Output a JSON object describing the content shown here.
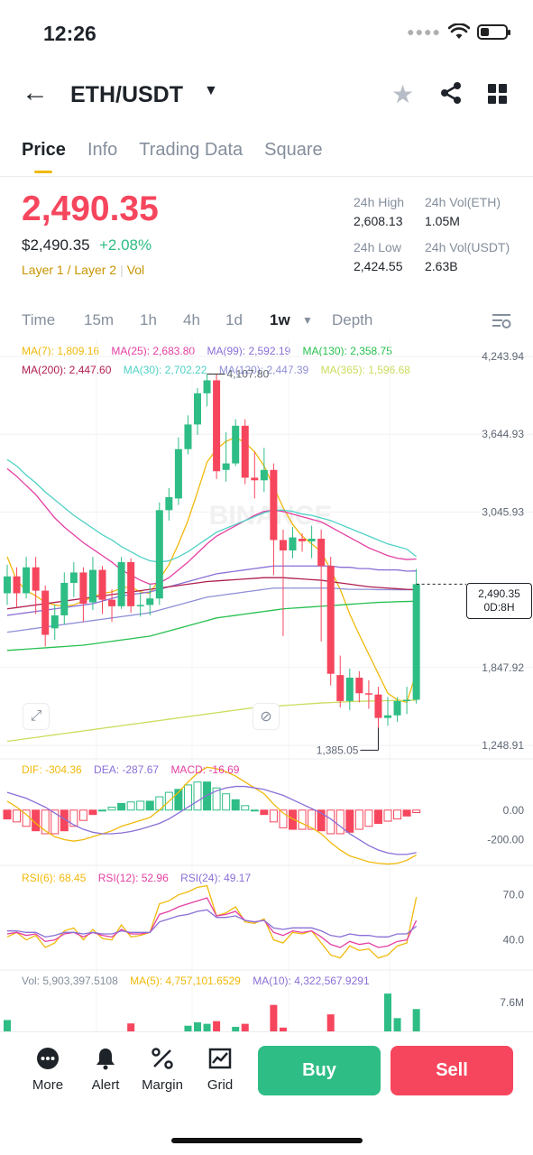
{
  "status": {
    "time": "12:26"
  },
  "header": {
    "pair": "ETH/USDT"
  },
  "tabs": [
    "Price",
    "Info",
    "Trading Data",
    "Square"
  ],
  "ticker": {
    "last": "2,490.35",
    "usd": "$2,490.35",
    "change": "+2.08%",
    "tag1": "Layer 1 / Layer 2",
    "tag2": "Vol",
    "high_label": "24h High",
    "high": "2,608.13",
    "low_label": "24h Low",
    "low": "2,424.55",
    "vol_eth_label": "24h Vol(ETH)",
    "vol_eth": "1.05M",
    "vol_usdt_label": "24h Vol(USDT)",
    "vol_usdt": "2.63B"
  },
  "timeframes": [
    "Time",
    "15m",
    "1h",
    "4h",
    "1d",
    "1w",
    "Depth"
  ],
  "ma_legend": [
    {
      "label": "MA(7): 1,809.16",
      "color": "#f0b90b"
    },
    {
      "label": "MA(25): 2,683.80",
      "color": "#e440a3"
    },
    {
      "label": "MA(99): 2,592.19",
      "color": "#8a6fd6"
    },
    {
      "label": "MA(130): 2,358.75",
      "color": "#26c04f"
    },
    {
      "label": "MA(200): 2,447.60",
      "color": "#b01e50"
    },
    {
      "label": "MA(30): 2,702.22",
      "color": "#4fd1c5"
    },
    {
      "label": "MA(120): 2,447.39",
      "color": "#8f8fd8"
    },
    {
      "label": "MA(365): 1,596.68",
      "color": "#cddc5e"
    }
  ],
  "chart_data": {
    "type": "candlestick",
    "interval": "1w",
    "y_ticks": [
      "4,243.94",
      "3,644.93",
      "3,045.93",
      "1,847.92",
      "1,248.91"
    ],
    "y_tick_values": [
      4243.94,
      3644.93,
      3045.93,
      1847.92,
      1248.91
    ],
    "high_marker": "4,107.80",
    "low_marker": "1,385.05",
    "last_price": "2,490.35",
    "countdown": "0D:8H",
    "candles": [
      [
        2420,
        2550,
        2330,
        2640
      ],
      [
        2550,
        2420,
        2310,
        2620
      ],
      [
        2420,
        2620,
        2380,
        2700
      ],
      [
        2620,
        2440,
        2260,
        2700
      ],
      [
        2440,
        2100,
        2010,
        2480
      ],
      [
        2150,
        2250,
        2060,
        2330
      ],
      [
        2250,
        2500,
        2180,
        2580
      ],
      [
        2500,
        2580,
        2390,
        2660
      ],
      [
        2580,
        2340,
        2200,
        2620
      ],
      [
        2350,
        2600,
        2290,
        2700
      ],
      [
        2600,
        2370,
        2260,
        2630
      ],
      [
        2370,
        2320,
        2200,
        2450
      ],
      [
        2320,
        2660,
        2300,
        2700
      ],
      [
        2660,
        2320,
        2270,
        2690
      ],
      [
        2320,
        2330,
        2240,
        2420
      ],
      [
        2330,
        2380,
        2250,
        2490
      ],
      [
        2380,
        3060,
        2330,
        3120
      ],
      [
        3060,
        3160,
        2980,
        3230
      ],
      [
        3150,
        3530,
        3100,
        3620
      ],
      [
        3530,
        3720,
        3490,
        3790
      ],
      [
        3720,
        3960,
        3640,
        4000
      ],
      [
        3960,
        4060,
        3860,
        4107.8
      ],
      [
        4060,
        3360,
        3300,
        4107.8
      ],
      [
        3370,
        3420,
        3280,
        3660
      ],
      [
        3420,
        3710,
        3400,
        3760
      ],
      [
        3710,
        3310,
        3260,
        3760
      ],
      [
        3310,
        3290,
        3150,
        3510
      ],
      [
        3290,
        3370,
        3200,
        3540
      ],
      [
        3370,
        2830,
        2560,
        3420
      ],
      [
        2830,
        2750,
        2090,
        2910
      ],
      [
        2750,
        2850,
        2690,
        2930
      ],
      [
        2840,
        2820,
        2740,
        2880
      ],
      [
        2820,
        2840,
        2690,
        2940
      ],
      [
        2840,
        2630,
        2050,
        2910
      ],
      [
        2630,
        1800,
        1710,
        2700
      ],
      [
        1790,
        1590,
        1540,
        1940
      ],
      [
        1590,
        1770,
        1520,
        1840
      ],
      [
        1770,
        1650,
        1580,
        1820
      ],
      [
        1650,
        1640,
        1530,
        1750
      ],
      [
        1640,
        1460,
        1385.05,
        1700
      ],
      [
        1460,
        1480,
        1400,
        1620
      ],
      [
        1480,
        1590,
        1430,
        1620
      ],
      [
        1590,
        1600,
        1490,
        1700
      ],
      [
        1600,
        2490.35,
        1570,
        2608.13
      ]
    ],
    "ma": [
      {
        "name": "MA(7)",
        "color": "#f0b90b",
        "values": [
          2700,
          2520,
          2440,
          2400,
          2350,
          2330,
          2320,
          2330,
          2360,
          2390,
          2420,
          2430,
          2460,
          2470,
          2430,
          2420,
          2530,
          2640,
          2800,
          2980,
          3200,
          3430,
          3530,
          3590,
          3620,
          3580,
          3510,
          3400,
          3240,
          3080,
          2950,
          2860,
          2800,
          2740,
          2600,
          2450,
          2260,
          2100,
          1950,
          1800,
          1650,
          1600,
          1580,
          1809.16
        ]
      },
      {
        "name": "MA(25)",
        "color": "#e440a3",
        "values": [
          3380,
          3320,
          3250,
          3180,
          3090,
          3000,
          2930,
          2870,
          2810,
          2760,
          2710,
          2660,
          2600,
          2560,
          2520,
          2490,
          2500,
          2540,
          2600,
          2660,
          2730,
          2800,
          2860,
          2900,
          2940,
          2980,
          3020,
          3050,
          3060,
          3050,
          3030,
          3010,
          2990,
          2970,
          2930,
          2890,
          2850,
          2810,
          2770,
          2740,
          2710,
          2690,
          2680,
          2683.8
        ]
      },
      {
        "name": "MA(30)",
        "color": "#4fd1c5",
        "values": [
          3450,
          3400,
          3330,
          3270,
          3200,
          3140,
          3080,
          3020,
          2970,
          2920,
          2870,
          2830,
          2780,
          2740,
          2700,
          2670,
          2660,
          2670,
          2700,
          2740,
          2790,
          2840,
          2890,
          2920,
          2950,
          2980,
          3010,
          3040,
          3060,
          3060,
          3050,
          3030,
          3020,
          3000,
          2980,
          2950,
          2920,
          2890,
          2860,
          2830,
          2800,
          2780,
          2760,
          2702.22
        ]
      },
      {
        "name": "MA(99)",
        "color": "#8a6fd6",
        "values": [
          2250,
          2260,
          2270,
          2280,
          2290,
          2300,
          2310,
          2320,
          2330,
          2340,
          2360,
          2380,
          2400,
          2410,
          2420,
          2430,
          2450,
          2470,
          2490,
          2510,
          2530,
          2550,
          2570,
          2580,
          2590,
          2600,
          2610,
          2620,
          2630,
          2630,
          2630,
          2630,
          2630,
          2630,
          2630,
          2620,
          2620,
          2610,
          2610,
          2600,
          2600,
          2600,
          2590,
          2592.19
        ]
      },
      {
        "name": "MA(120)",
        "color": "#8f8fd8",
        "values": [
          2120,
          2130,
          2140,
          2150,
          2160,
          2170,
          2180,
          2190,
          2200,
          2210,
          2220,
          2230,
          2240,
          2250,
          2260,
          2270,
          2290,
          2310,
          2330,
          2350,
          2370,
          2390,
          2400,
          2410,
          2420,
          2430,
          2440,
          2450,
          2460,
          2460,
          2460,
          2460,
          2460,
          2460,
          2460,
          2455,
          2450,
          2450,
          2450,
          2448,
          2448,
          2447,
          2447,
          2447.39
        ]
      },
      {
        "name": "MA(130)",
        "color": "#26c04f",
        "values": [
          1980,
          1985,
          1990,
          1995,
          2000,
          2005,
          2010,
          2015,
          2020,
          2030,
          2040,
          2050,
          2060,
          2070,
          2080,
          2090,
          2110,
          2130,
          2150,
          2170,
          2190,
          2210,
          2230,
          2240,
          2250,
          2260,
          2270,
          2280,
          2290,
          2300,
          2305,
          2310,
          2315,
          2320,
          2325,
          2330,
          2335,
          2340,
          2345,
          2350,
          2352,
          2355,
          2357,
          2358.75
        ]
      },
      {
        "name": "MA(200)",
        "color": "#b01e50",
        "values": [
          2300,
          2310,
          2320,
          2330,
          2340,
          2350,
          2360,
          2370,
          2380,
          2390,
          2400,
          2410,
          2420,
          2430,
          2440,
          2450,
          2460,
          2470,
          2480,
          2490,
          2500,
          2510,
          2515,
          2520,
          2525,
          2530,
          2535,
          2540,
          2540,
          2540,
          2535,
          2530,
          2525,
          2520,
          2510,
          2500,
          2490,
          2480,
          2470,
          2465,
          2460,
          2455,
          2450,
          2447.6
        ]
      },
      {
        "name": "MA(365)",
        "color": "#cddc5e",
        "values": [
          1280,
          1290,
          1300,
          1310,
          1320,
          1330,
          1340,
          1350,
          1360,
          1370,
          1380,
          1390,
          1400,
          1410,
          1420,
          1430,
          1440,
          1450,
          1460,
          1470,
          1480,
          1490,
          1500,
          1510,
          1520,
          1530,
          1540,
          1545,
          1550,
          1555,
          1560,
          1565,
          1570,
          1575,
          1578,
          1582,
          1585,
          1588,
          1590,
          1592,
          1593,
          1594,
          1595,
          1596.68
        ]
      }
    ],
    "macd": {
      "legend": [
        "DIF: -304.36",
        "DEA: -287.67",
        "MACD: -16.69"
      ],
      "colors": [
        "#f0b90b",
        "#8a6fd6",
        "#e440a3"
      ],
      "y_ticks": [
        "0.00",
        "-200.00"
      ],
      "y_tick_values": [
        0,
        -200
      ],
      "dif": [
        60,
        20,
        -30,
        -90,
        -140,
        -180,
        -200,
        -210,
        -200,
        -180,
        -160,
        -140,
        -110,
        -90,
        -70,
        -50,
        0,
        60,
        120,
        190,
        250,
        290,
        280,
        260,
        230,
        190,
        150,
        110,
        40,
        -20,
        -60,
        -90,
        -120,
        -160,
        -220,
        -270,
        -310,
        -330,
        -350,
        -360,
        -365,
        -360,
        -340,
        -304.36
      ],
      "dea": [
        120,
        100,
        80,
        50,
        20,
        -20,
        -60,
        -100,
        -130,
        -150,
        -160,
        -160,
        -155,
        -145,
        -130,
        -110,
        -90,
        -60,
        -20,
        20,
        60,
        100,
        130,
        150,
        160,
        160,
        150,
        140,
        120,
        100,
        70,
        40,
        10,
        -20,
        -60,
        -110,
        -160,
        -200,
        -240,
        -270,
        -290,
        -300,
        -300,
        -287.67
      ],
      "hist": [
        -60,
        -80,
        -110,
        -140,
        -160,
        -160,
        -140,
        -110,
        -70,
        -30,
        0,
        20,
        45,
        55,
        60,
        60,
        90,
        120,
        140,
        170,
        190,
        190,
        150,
        110,
        70,
        30,
        0,
        -30,
        -80,
        -120,
        -130,
        -130,
        -130,
        -140,
        -160,
        -160,
        -150,
        -130,
        -110,
        -90,
        -75,
        -60,
        -40,
        -16.69
      ]
    },
    "rsi": {
      "legend": [
        "RSI(6): 68.45",
        "RSI(12): 52.96",
        "RSI(24): 49.17"
      ],
      "colors": [
        "#f0b90b",
        "#e440a3",
        "#8a6fd6"
      ],
      "y_ticks": [
        "70.0",
        "40.0"
      ],
      "y_tick_values": [
        70,
        40
      ],
      "rsi6": [
        42,
        45,
        40,
        43,
        35,
        38,
        46,
        48,
        40,
        47,
        41,
        40,
        50,
        42,
        43,
        45,
        64,
        66,
        70,
        72,
        75,
        76,
        56,
        58,
        62,
        52,
        51,
        54,
        40,
        38,
        45,
        44,
        46,
        38,
        30,
        28,
        36,
        33,
        34,
        28,
        30,
        36,
        38,
        68.45
      ],
      "rsi12": [
        44,
        45,
        43,
        44,
        39,
        40,
        44,
        45,
        42,
        45,
        43,
        42,
        47,
        44,
        44,
        45,
        57,
        59,
        62,
        64,
        66,
        68,
        56,
        57,
        59,
        53,
        52,
        53,
        45,
        43,
        46,
        45,
        46,
        42,
        37,
        35,
        39,
        37,
        38,
        35,
        36,
        39,
        40,
        52.96
      ],
      "rsi24": [
        46,
        46,
        45,
        45,
        42,
        43,
        45,
        45,
        44,
        45,
        44,
        44,
        46,
        45,
        45,
        45,
        52,
        54,
        56,
        57,
        59,
        60,
        55,
        55,
        56,
        53,
        52,
        53,
        48,
        47,
        48,
        48,
        48,
        46,
        43,
        42,
        44,
        43,
        43,
        42,
        42,
        44,
        44,
        49.17
      ]
    },
    "volume": {
      "legend": [
        "Vol: 5,903,397.5108",
        "MA(5): 4,757,101.6529",
        "MA(10): 4,322,567.9291"
      ],
      "colors": [
        "#848e9c",
        "#f0b90b",
        "#8a6fd6"
      ],
      "y_tick": "7.6M",
      "y_tick_value": 7600000,
      "values": [
        3.0,
        0,
        0,
        0,
        0,
        0,
        0,
        0,
        0,
        0,
        0,
        0,
        0,
        2.1,
        0,
        0,
        0,
        0,
        0,
        1.5,
        2.4,
        2.0,
        2.7,
        0,
        1.2,
        2.0,
        0,
        0,
        7.0,
        1.0,
        0,
        0,
        0,
        0,
        4.5,
        0,
        0,
        0,
        0,
        0,
        10.0,
        3.5,
        0,
        5.9
      ]
    }
  },
  "bottom": {
    "more": "More",
    "alert": "Alert",
    "margin": "Margin",
    "grid": "Grid",
    "buy": "Buy",
    "sell": "Sell"
  }
}
